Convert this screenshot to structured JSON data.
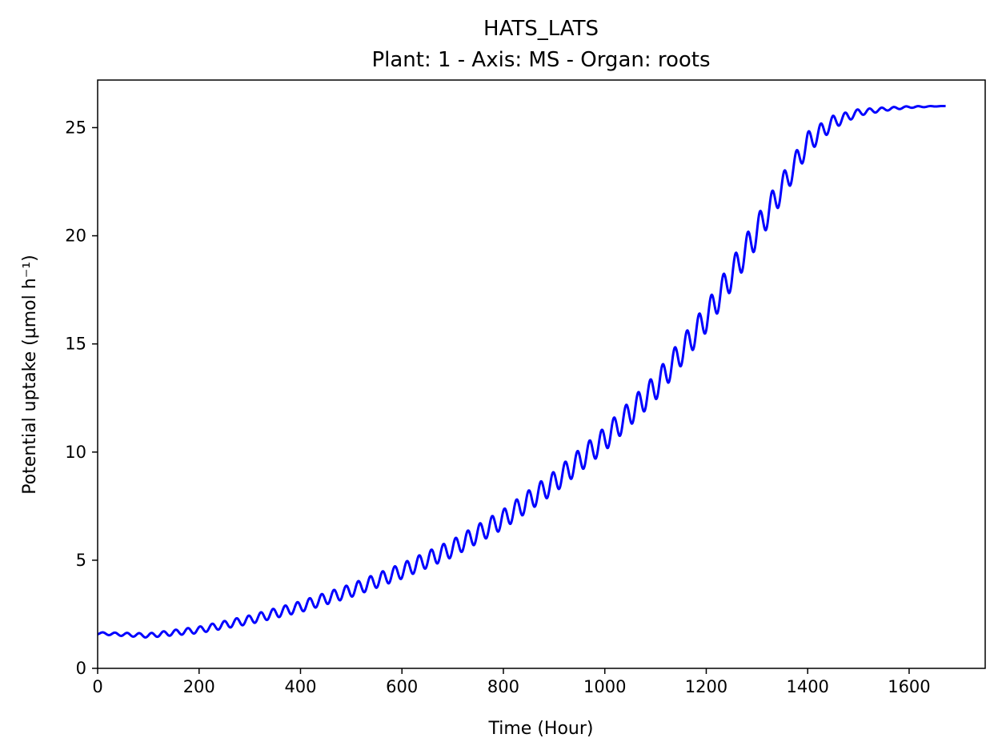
{
  "chart_data": {
    "type": "line",
    "title": "HATS_LATS",
    "subtitle": "Plant: 1 - Axis: MS - Organ: roots",
    "xlabel": "Time (Hour)",
    "ylabel": "Potential uptake (µmol h⁻¹)",
    "xlim": [
      0,
      1750
    ],
    "ylim": [
      0,
      27.2
    ],
    "xticks": [
      0,
      200,
      400,
      600,
      800,
      1000,
      1200,
      1400,
      1600
    ],
    "yticks": [
      0,
      5,
      10,
      15,
      20,
      25
    ],
    "grid": false,
    "color": "#0000ff",
    "series": [
      {
        "x": [
          0,
          100,
          200,
          300,
          400,
          500,
          600,
          700,
          800,
          900,
          1000,
          1100,
          1200,
          1300,
          1400,
          1450,
          1500,
          1550,
          1600,
          1672
        ],
        "baseline": [
          1.62,
          1.52,
          1.78,
          2.25,
          2.85,
          3.6,
          4.5,
          5.55,
          6.9,
          8.6,
          10.6,
          13.0,
          16.2,
          20.2,
          24.3,
          25.25,
          25.7,
          25.85,
          25.95,
          26.0
        ],
        "amplitude": [
          0.05,
          0.1,
          0.15,
          0.2,
          0.25,
          0.3,
          0.35,
          0.4,
          0.45,
          0.5,
          0.55,
          0.6,
          0.65,
          0.7,
          0.5,
          0.3,
          0.15,
          0.08,
          0.04,
          0.0
        ],
        "period_hours": 24
      }
    ]
  }
}
